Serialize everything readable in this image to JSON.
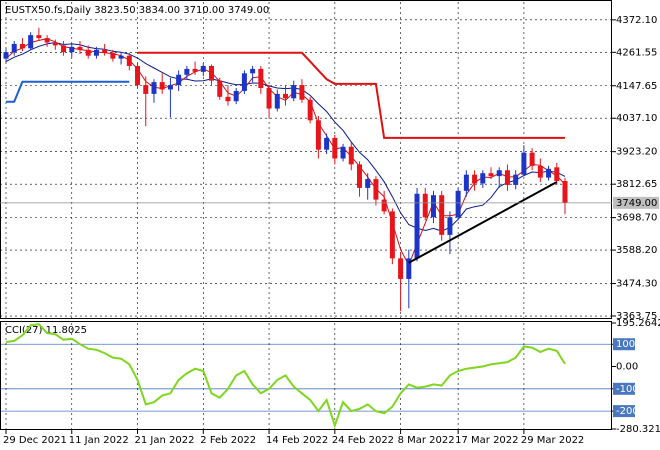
{
  "chart_data": [
    {
      "type": "candlestick",
      "title": "EUSTX50.fs,Daily  3823.50 3834.00 3710.00 3749.00",
      "categories": [
        "29 Dec 2021",
        null,
        null,
        null,
        null,
        null,
        null,
        null,
        "11 Jan 2022",
        null,
        null,
        null,
        null,
        null,
        null,
        null,
        "21 Jan 2022",
        null,
        null,
        null,
        null,
        null,
        null,
        null,
        "2 Feb 2022",
        null,
        null,
        null,
        null,
        null,
        null,
        null,
        "14 Feb 2022",
        null,
        null,
        null,
        null,
        null,
        null,
        null,
        "24 Feb 2022",
        null,
        null,
        null,
        null,
        null,
        null,
        null,
        "8 Mar 2022",
        null,
        null,
        null,
        null,
        null,
        null,
        "17 Mar 2022",
        null,
        null,
        null,
        null,
        null,
        null,
        null,
        "29 Mar 2022",
        null,
        null,
        null,
        null,
        null
      ],
      "open": [
        4240,
        4262,
        4290,
        4275,
        4320,
        4310,
        4295,
        4285,
        4262,
        4280,
        4270,
        4250,
        4270,
        4260,
        4240,
        4250,
        4215,
        4150,
        4120,
        4160,
        4135,
        4150,
        4185,
        4205,
        4195,
        4215,
        4165,
        4110,
        4095,
        4130,
        4190,
        4205,
        4140,
        4070,
        4120,
        4105,
        4150,
        4100,
        4030,
        3930,
        3970,
        3900,
        3940,
        3880,
        3800,
        3830,
        3760,
        3720,
        3560,
        3490,
        3560,
        3780,
        3700,
        3775,
        3640,
        3700,
        3790,
        3845,
        3815,
        3850,
        3840,
        3860,
        3810,
        3845,
        3920,
        3875,
        3835,
        3870,
        3823.5
      ],
      "high": [
        4275,
        4300,
        4310,
        4330,
        4345,
        4320,
        4305,
        4300,
        4290,
        4300,
        4285,
        4280,
        4290,
        4270,
        4260,
        4260,
        4225,
        4180,
        4170,
        4190,
        4175,
        4200,
        4215,
        4230,
        4225,
        4220,
        4175,
        4150,
        4140,
        4200,
        4215,
        4215,
        4150,
        4135,
        4150,
        4165,
        4170,
        4110,
        4045,
        3985,
        3980,
        3950,
        3955,
        3890,
        3850,
        3840,
        3790,
        3730,
        3580,
        3590,
        3800,
        3800,
        3790,
        3790,
        3720,
        3800,
        3860,
        3860,
        3860,
        3870,
        3870,
        3880,
        3860,
        3945,
        3935,
        3900,
        3875,
        3885,
        3834
      ],
      "low": [
        4225,
        4250,
        4265,
        4270,
        4300,
        4280,
        4270,
        4250,
        4245,
        4255,
        4240,
        4240,
        4250,
        4230,
        4220,
        4200,
        4140,
        4010,
        4090,
        4120,
        4040,
        4130,
        4170,
        4185,
        4180,
        4150,
        4100,
        4080,
        4085,
        4120,
        4160,
        4120,
        4040,
        4060,
        4080,
        4095,
        4090,
        4020,
        3900,
        3915,
        3880,
        3890,
        3860,
        3770,
        3760,
        3740,
        3710,
        3540,
        3380,
        3390,
        3550,
        3690,
        3680,
        3620,
        3575,
        3690,
        3770,
        3790,
        3800,
        3830,
        3800,
        3790,
        3795,
        3840,
        3860,
        3820,
        3825,
        3810,
        3710
      ],
      "close": [
        4262,
        4290,
        4275,
        4320,
        4310,
        4295,
        4285,
        4262,
        4280,
        4270,
        4250,
        4270,
        4260,
        4240,
        4250,
        4215,
        4150,
        4120,
        4160,
        4135,
        4150,
        4185,
        4205,
        4195,
        4215,
        4165,
        4110,
        4095,
        4130,
        4190,
        4205,
        4140,
        4070,
        4120,
        4105,
        4150,
        4100,
        4030,
        3930,
        3970,
        3900,
        3940,
        3880,
        3800,
        3830,
        3760,
        3720,
        3560,
        3490,
        3560,
        3780,
        3700,
        3775,
        3640,
        3700,
        3790,
        3845,
        3815,
        3850,
        3840,
        3860,
        3810,
        3845,
        3920,
        3875,
        3835,
        3865,
        3823.5,
        3749
      ],
      "up_color": "#1c34c8",
      "down_color": "#e8141c",
      "overlays": [
        {
          "color": "#0a1a8c",
          "values": [
            4230,
            4245,
            4255,
            4270,
            4282,
            4290,
            4295,
            4288,
            4290,
            4287,
            4279,
            4274,
            4272,
            4265,
            4262,
            4255,
            4242,
            4223,
            4208,
            4193,
            4178,
            4171,
            4170,
            4164,
            4165,
            4171,
            4165,
            4157,
            4151,
            4152,
            4157,
            4156,
            4147,
            4140,
            4138,
            4140,
            4135,
            4115,
            4086,
            4060,
            4024,
            3996,
            3956,
            3921,
            3896,
            3860,
            3821,
            3770,
            3715,
            3675,
            3663,
            3655,
            3662,
            3653,
            3665,
            3693,
            3728,
            3736,
            3741,
            3767,
            3804,
            3818,
            3826,
            3842,
            3854,
            3852,
            3857,
            3853,
            3839
          ]
        },
        {
          "color": "#d01010",
          "values": [
            4240,
            4265,
            4276,
            4295,
            4302,
            4308,
            4297,
            4281,
            4276,
            4271,
            4267,
            4263,
            4260,
            4257,
            4250,
            4235,
            4205,
            4162,
            4143,
            4138,
            4148,
            4157,
            4180,
            4195,
            4205,
            4192,
            4163,
            4123,
            4112,
            4138,
            4175,
            4178,
            4138,
            4110,
            4098,
            4125,
            4118,
            4093,
            4020,
            3977,
            3933,
            3937,
            3907,
            3873,
            3837,
            3797,
            3770,
            3680,
            3590,
            3537,
            3610,
            3680,
            3752,
            3705,
            3705,
            3710,
            3778,
            3817,
            3837,
            3835,
            3850,
            3837,
            3838,
            3858,
            3880,
            3877,
            3858,
            3841,
            3812
          ]
        },
        {
          "color": "#e01010",
          "values": [
            null,
            null,
            null,
            null,
            null,
            null,
            null,
            null,
            null,
            null,
            null,
            null,
            null,
            null,
            null,
            null,
            4260,
            4260,
            4260,
            4260,
            4260,
            4260,
            4260,
            4260,
            4260,
            4260,
            4260,
            4260,
            4260,
            4260,
            4260,
            4260,
            4260,
            4260,
            4260,
            4260,
            4260,
            4230,
            4200,
            4170,
            4154,
            4154,
            4154,
            4154,
            4154,
            4154,
            3970,
            3970,
            3970,
            3970,
            3970,
            3970,
            3970,
            3970,
            3970,
            3970,
            3970,
            3970,
            3970,
            3970,
            3970,
            3970,
            3970,
            3970,
            3970,
            3970,
            3970,
            3970,
            3970
          ]
        },
        {
          "color": "#1e5fd0",
          "values": [
            4093,
            4093,
            4161,
            4161,
            4161,
            4161,
            4161,
            4161,
            4161,
            4161,
            4161,
            4161,
            4161,
            4161,
            4161,
            4161,
            null,
            null,
            null,
            null,
            null,
            null,
            null,
            null,
            null,
            null,
            null,
            null,
            null,
            null,
            null,
            null,
            null,
            null,
            null,
            null,
            null,
            null,
            null,
            null,
            null,
            null,
            null,
            null,
            null,
            null,
            null,
            null,
            null,
            null,
            null,
            null,
            null,
            null,
            null,
            null,
            null,
            null,
            null,
            null,
            null,
            null,
            null,
            null,
            null,
            null,
            null,
            null,
            null
          ]
        }
      ],
      "trendline": {
        "color": "#000000",
        "x": [
          49,
          67
        ],
        "values": [
          3545,
          3820
        ]
      },
      "last_price": {
        "value": 3749,
        "label": "3749.00"
      },
      "ylim": [
        3357,
        4426
      ],
      "yticks": [
        {
          "value": 4372.1,
          "label": "4372.10"
        },
        4261.55,
        4147.65,
        {
          "value": 4037.1,
          "label": "4037.10"
        },
        {
          "value": 3923.2,
          "label": "3923.20"
        },
        3812.65,
        {
          "value": 3698.7,
          "label": "3698.70"
        },
        {
          "value": 3588.2,
          "label": "3588.20"
        },
        {
          "value": 3474.3,
          "label": "3474.30"
        },
        3363.75
      ],
      "grid": true
    },
    {
      "type": "line",
      "title": "CCI(27) 11.8025",
      "color": "#7fd61e",
      "values": [
        110,
        115,
        140,
        185,
        190,
        150,
        145,
        120,
        125,
        100,
        80,
        75,
        60,
        40,
        35,
        10,
        -60,
        -170,
        -160,
        -130,
        -120,
        -60,
        -30,
        -10,
        -20,
        -120,
        -140,
        -100,
        -40,
        -20,
        -80,
        -120,
        -100,
        -60,
        -40,
        -90,
        -120,
        -150,
        -200,
        -150,
        -265,
        -160,
        -200,
        -190,
        -170,
        -200,
        -210,
        -180,
        -120,
        -80,
        -95,
        -90,
        -80,
        -85,
        -40,
        -20,
        -10,
        -5,
        0,
        10,
        15,
        20,
        40,
        90,
        85,
        65,
        80,
        70,
        11.8025
      ],
      "ylim": [
        -280.3219,
        195.2642
      ],
      "yticks": [
        195.2642,
        100,
        {
          "value": 0,
          "label": "0.00"
        },
        -100,
        -200,
        -280.3219
      ],
      "levels": [
        100,
        -100,
        -200
      ],
      "level_color": "#4a78c0"
    }
  ]
}
